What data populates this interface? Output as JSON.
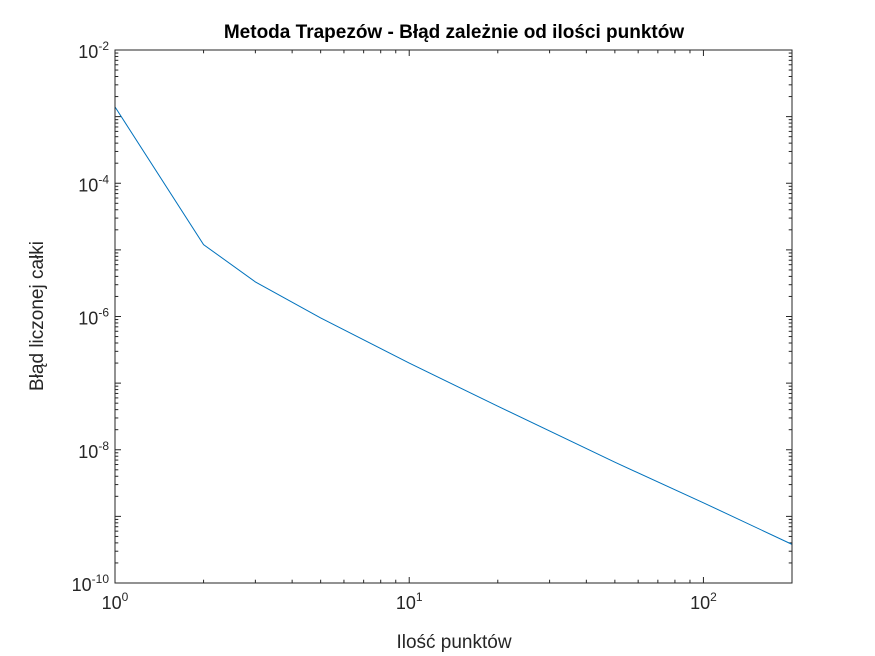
{
  "chart_data": {
    "type": "line",
    "title": "Metoda Trapezów - Błąd zależnie od ilości punktów",
    "xlabel": "Ilość punktów",
    "ylabel": "Błąd liczonej całki",
    "xscale": "log",
    "yscale": "log",
    "xlim": [
      1,
      200
    ],
    "ylim": [
      1e-10,
      0.01
    ],
    "grid": false,
    "legend": "none",
    "x_ticks": [
      {
        "value": 1,
        "base": "10",
        "exp": "0"
      },
      {
        "value": 10,
        "base": "10",
        "exp": "1"
      },
      {
        "value": 100,
        "base": "10",
        "exp": "2"
      }
    ],
    "y_ticks": [
      {
        "value": 1e-10,
        "base": "10",
        "exp": "-10"
      },
      {
        "value": 1e-08,
        "base": "10",
        "exp": "-8"
      },
      {
        "value": 1e-06,
        "base": "10",
        "exp": "-6"
      },
      {
        "value": 0.0001,
        "base": "10",
        "exp": "-4"
      },
      {
        "value": 0.01,
        "base": "10",
        "exp": "-2"
      }
    ],
    "series": [
      {
        "color": "#0072bd",
        "x": [
          1,
          2,
          3,
          5,
          10,
          20,
          50,
          100,
          200
        ],
        "y": [
          0.0014,
          1.2e-05,
          3.3e-06,
          9.5e-07,
          2e-07,
          4.5e-08,
          6.5e-09,
          1.6e-09,
          3.8e-10
        ]
      }
    ]
  }
}
